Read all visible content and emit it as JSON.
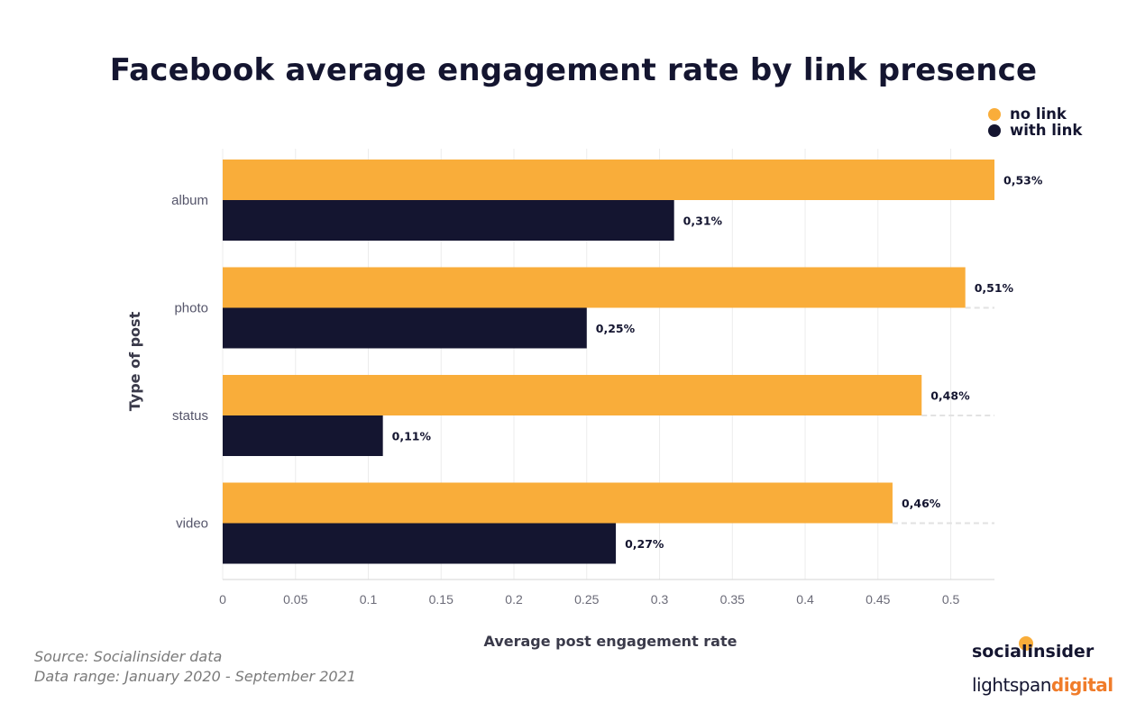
{
  "chart_data": {
    "type": "bar",
    "orientation": "horizontal",
    "title": "Facebook average engagement rate by link presence",
    "xlabel": "Average post engagement rate",
    "ylabel": "Type of post",
    "categories": [
      "album",
      "photo",
      "status",
      "video"
    ],
    "series": [
      {
        "name": "no link",
        "color": "#f9ad3a",
        "values": [
          0.53,
          0.51,
          0.48,
          0.46
        ],
        "labels": [
          "0,53%",
          "0,51%",
          "0,48%",
          "0,46%"
        ]
      },
      {
        "name": "with link",
        "color": "#141530",
        "values": [
          0.31,
          0.25,
          0.11,
          0.27
        ],
        "labels": [
          "0,31%",
          "0,25%",
          "0,11%",
          "0,27%"
        ]
      }
    ],
    "xlim": [
      0,
      0.53
    ],
    "xticks": [
      0,
      0.05,
      0.1,
      0.15,
      0.2,
      0.25,
      0.3,
      0.35,
      0.4,
      0.45,
      0.5
    ],
    "xtick_labels": [
      "0",
      "0.05",
      "0.1",
      "0.15",
      "0.2",
      "0.25",
      "0.3",
      "0.35",
      "0.4",
      "0.45",
      "0.5"
    ],
    "legend": "top-right",
    "grid": true
  },
  "footnote": {
    "source": "Source: Socialinsider data",
    "range": "Data range: January 2020 - September 2021"
  },
  "brands": {
    "primary": "socialinsider",
    "secondary_a": "lightspan",
    "secondary_b": "digital"
  }
}
